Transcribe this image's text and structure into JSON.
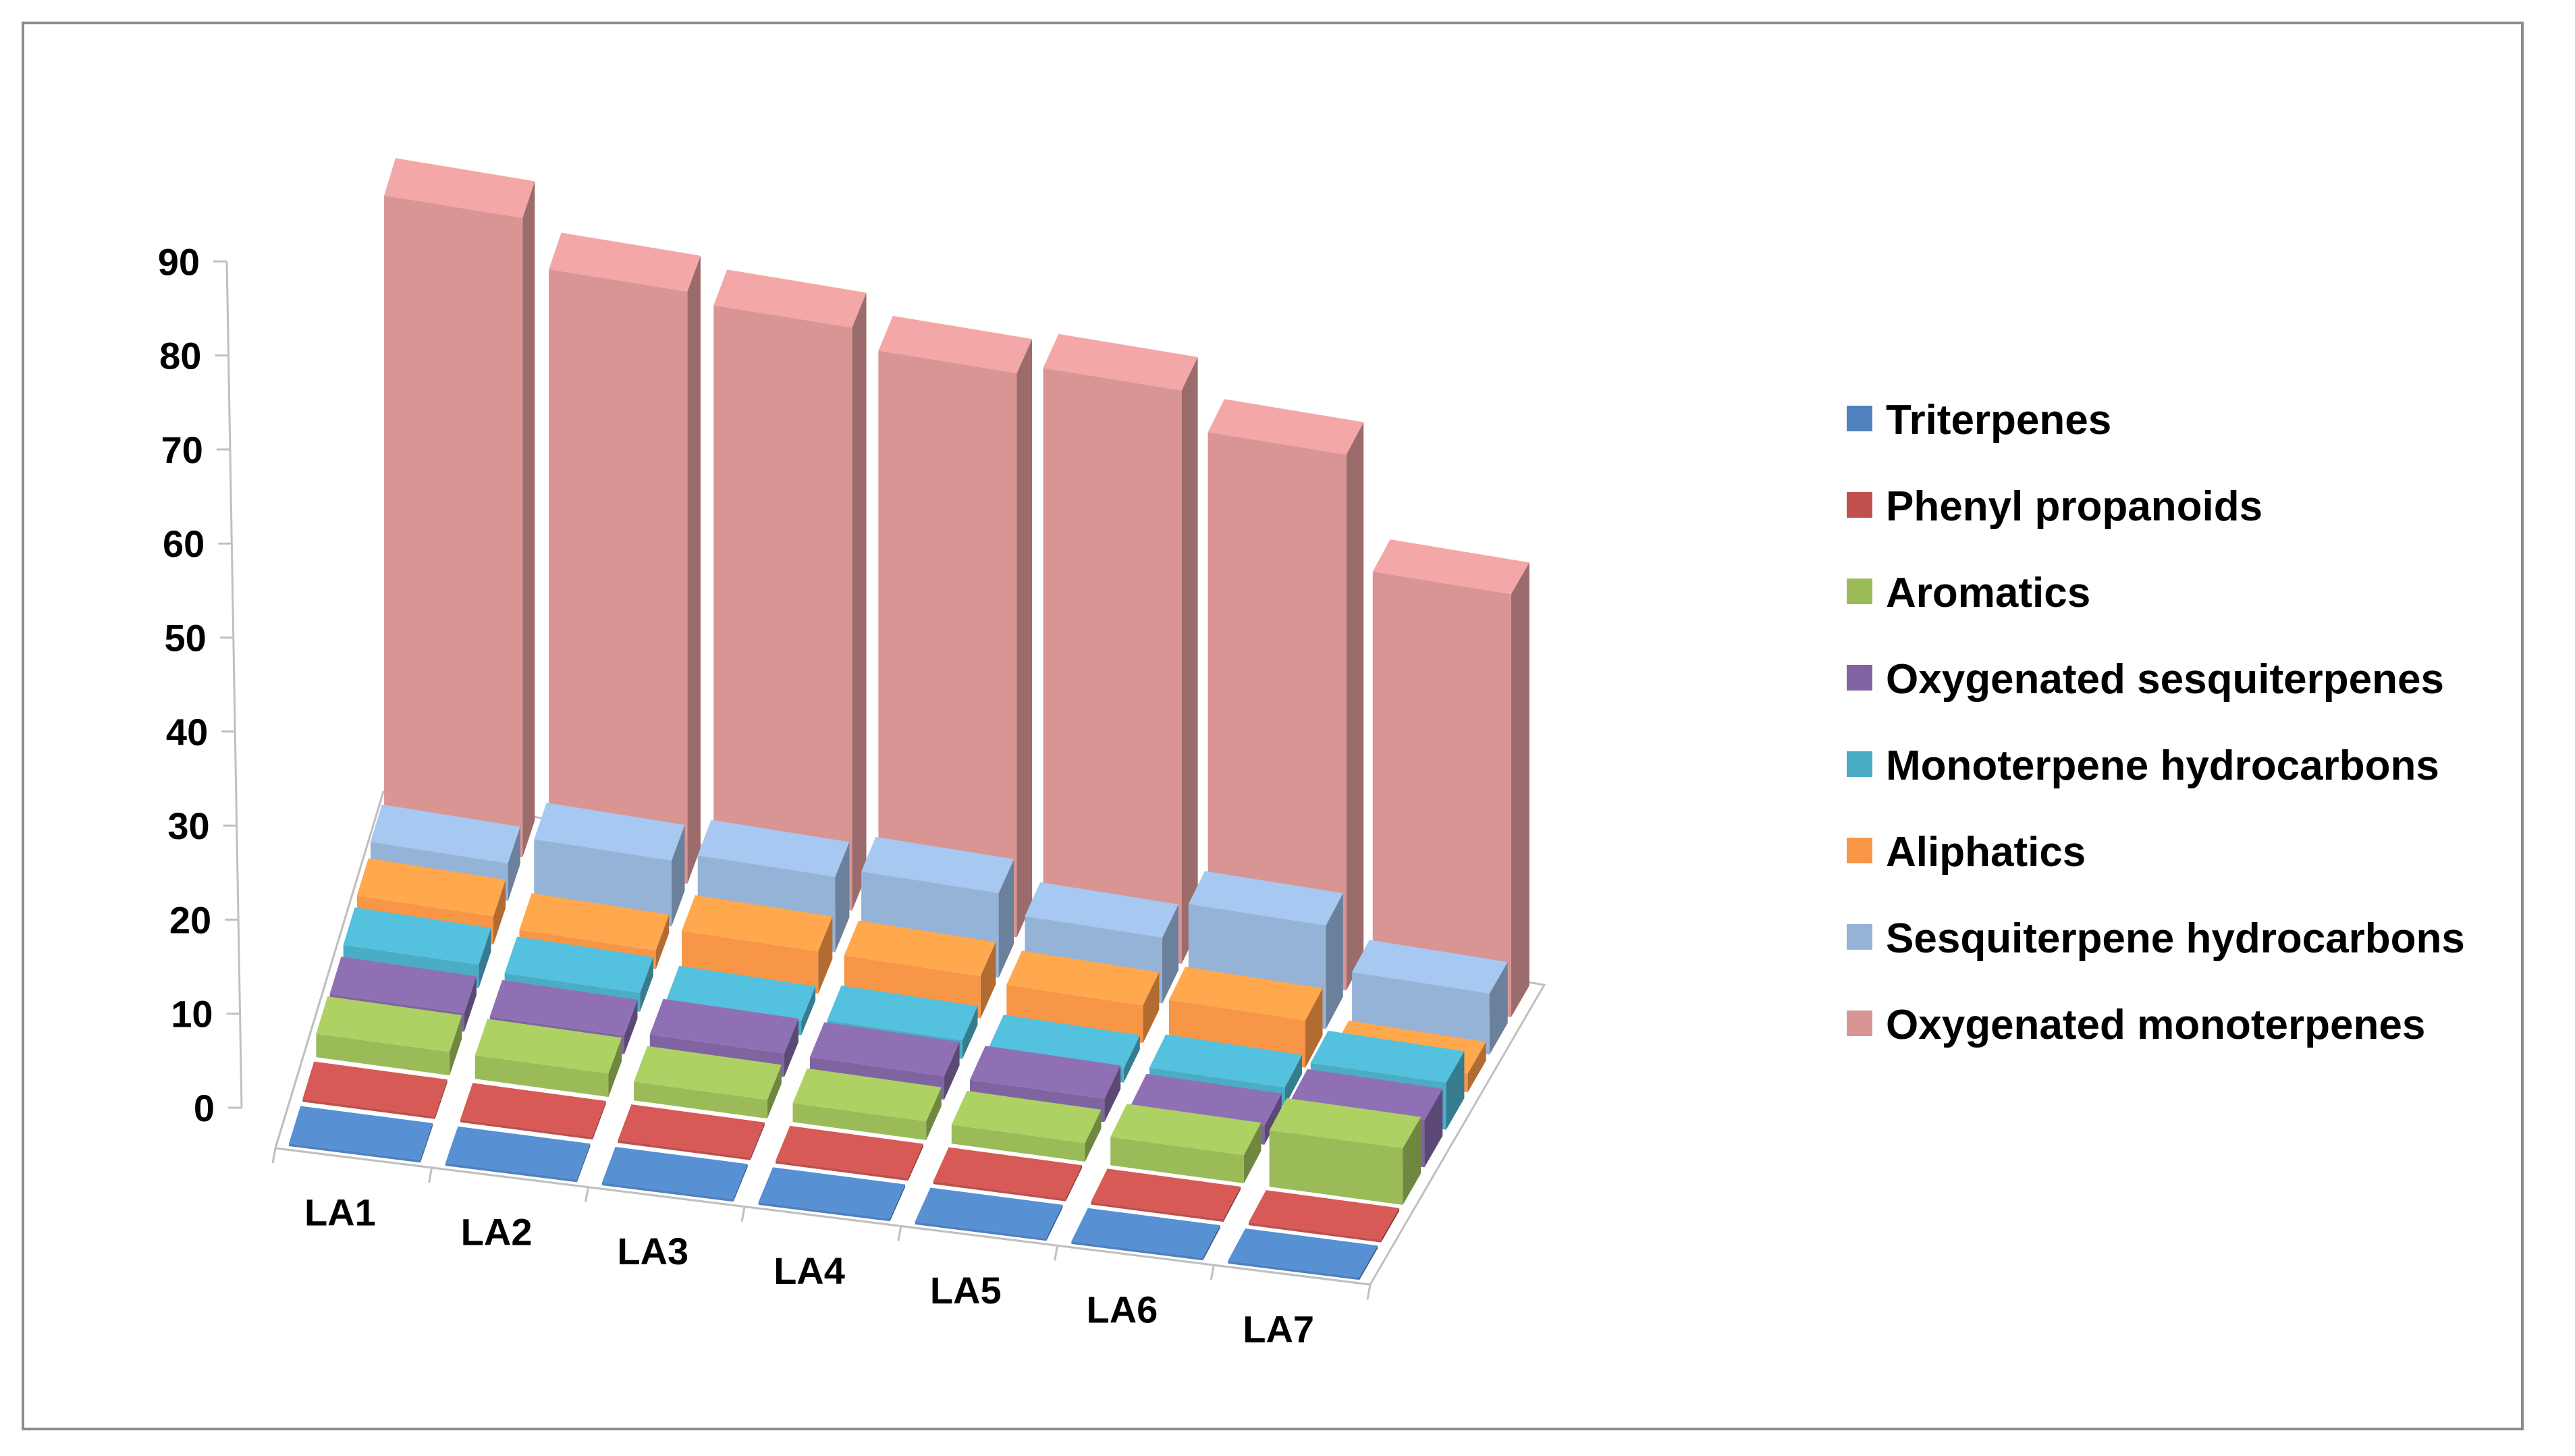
{
  "chart_data": {
    "type": "bar",
    "subtype": "3d-column",
    "title": "",
    "xlabel": "",
    "ylabel": "",
    "ylim": [
      0,
      90
    ],
    "yticks": [
      "0",
      "10",
      "20",
      "30",
      "40",
      "50",
      "60",
      "70",
      "80",
      "90"
    ],
    "categories": [
      "LA1",
      "LA2",
      "LA3",
      "LA4",
      "LA5",
      "LA6",
      "LA7"
    ],
    "legend_position": "right",
    "series": [
      {
        "name": "Triterpenes",
        "color": "#4F81BD",
        "values": [
          0.3,
          0.3,
          0.3,
          0.3,
          0.3,
          0.3,
          0.3
        ]
      },
      {
        "name": "Phenyl propanoids",
        "color": "#C0504D",
        "values": [
          0.3,
          0.3,
          0.3,
          0.3,
          0.3,
          0.3,
          0.3
        ]
      },
      {
        "name": "Aromatics",
        "color": "#9BBB59",
        "values": [
          2.5,
          2.5,
          2.0,
          2.0,
          2.0,
          3.0,
          6.0
        ]
      },
      {
        "name": "Oxygenated sesquiterpenes",
        "color": "#8064A2",
        "values": [
          2.0,
          2.0,
          2.5,
          2.5,
          2.5,
          2.0,
          5.0
        ]
      },
      {
        "name": "Monoterpene hydrocarbons",
        "color": "#4BACC6",
        "values": [
          2.5,
          2.0,
          1.5,
          2.0,
          1.5,
          2.0,
          5.0
        ]
      },
      {
        "name": "Aliphatics",
        "color": "#F79646",
        "values": [
          3.0,
          2.0,
          4.5,
          4.5,
          4.0,
          5.0,
          2.0
        ]
      },
      {
        "name": "Sesquiterpene hydrocarbons",
        "color": "#95B3D7",
        "values": [
          4.0,
          7.0,
          8.0,
          9.0,
          7.0,
          11.0,
          6.5
        ]
      },
      {
        "name": "Oxygenated monoterpenes",
        "color": "#D99594",
        "values": [
          68.0,
          63.0,
          62.0,
          60.0,
          61.0,
          57.0,
          45.0
        ]
      }
    ]
  }
}
